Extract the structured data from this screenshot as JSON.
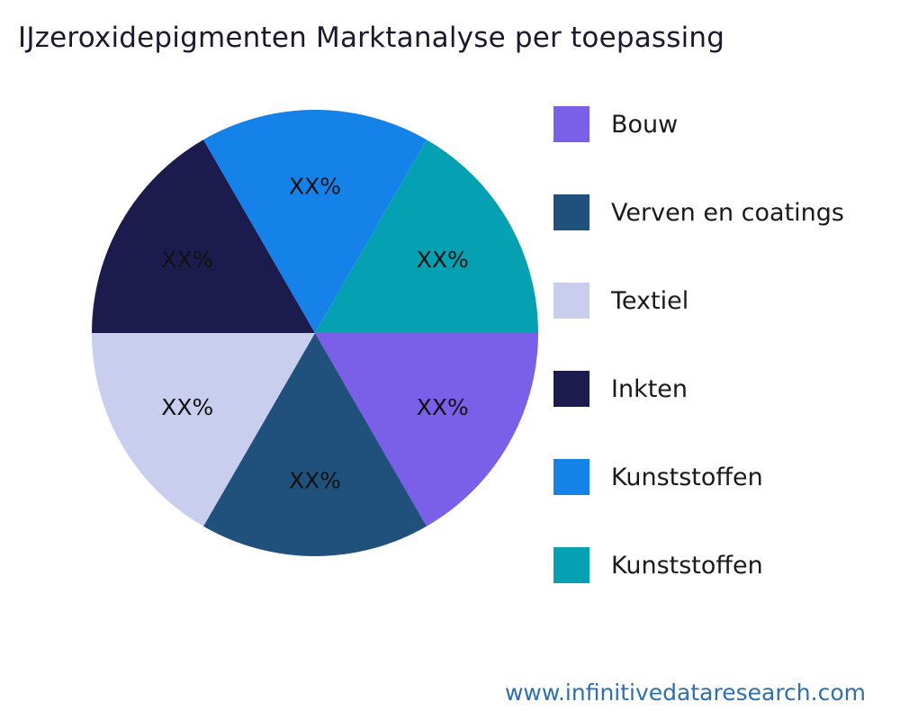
{
  "title": "IJzeroxidepigmenten Marktanalyse per toepassing",
  "footer": {
    "url": "www.infinitivedataresearch.com",
    "link_color": "#2e6fb0"
  },
  "chart_data": {
    "type": "pie",
    "title": "IJzeroxidepigmenten Marktanalyse per toepassing",
    "legend_position": "right",
    "start_angle_deg": 0,
    "direction": "clockwise",
    "slices": [
      {
        "name": "Bouw",
        "value_pct": 16.67,
        "display_label": "XX%",
        "color": "#7a5fe8"
      },
      {
        "name": "Verven en coatings",
        "value_pct": 16.67,
        "display_label": "XX%",
        "color": "#20517d"
      },
      {
        "name": "Textiel",
        "value_pct": 16.67,
        "display_label": "XX%",
        "color": "#c9cdee"
      },
      {
        "name": "Inkten",
        "value_pct": 16.67,
        "display_label": "XX%",
        "color": "#1b1b4e"
      },
      {
        "name": "Kunststoffen",
        "value_pct": 16.67,
        "display_label": "XX%",
        "color": "#1482e8"
      },
      {
        "name": "Kunststoffen",
        "value_pct": 16.67,
        "display_label": "XX%",
        "color": "#05a1b3"
      }
    ]
  }
}
